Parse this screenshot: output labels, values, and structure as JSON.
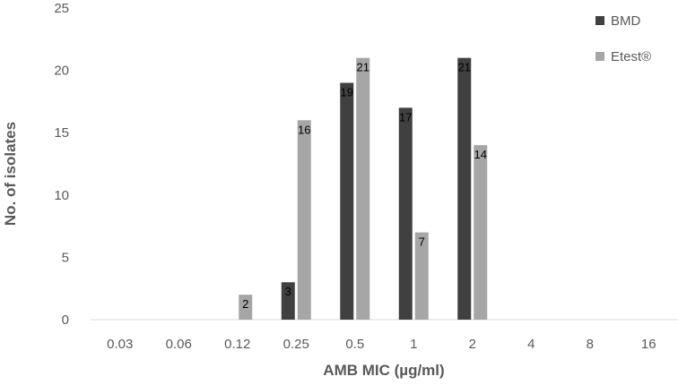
{
  "chart_data": {
    "type": "bar",
    "title": "",
    "xlabel": "AMB MIC (µg/ml)",
    "ylabel": "No. of isolates",
    "categories": [
      "0.03",
      "0.06",
      "0.12",
      "0.25",
      "0.5",
      "1",
      "2",
      "4",
      "8",
      "16"
    ],
    "ylim": [
      0,
      25
    ],
    "yticks": [
      0,
      5,
      10,
      15,
      20,
      25
    ],
    "grid": false,
    "legend_position": "top-right",
    "series": [
      {
        "name": "BMD",
        "color": "#404040",
        "values": [
          0,
          0,
          0,
          3,
          19,
          17,
          21,
          0,
          0,
          0
        ],
        "labels": [
          "",
          "",
          "",
          "3",
          "19",
          "17",
          "21",
          "",
          "",
          ""
        ]
      },
      {
        "name": "Etest®",
        "color": "#a6a6a6",
        "values": [
          0,
          0,
          2,
          16,
          21,
          7,
          14,
          0,
          0,
          0
        ],
        "labels": [
          "",
          "",
          "2",
          "16",
          "21",
          "7",
          "14",
          "",
          "",
          ""
        ]
      }
    ]
  }
}
